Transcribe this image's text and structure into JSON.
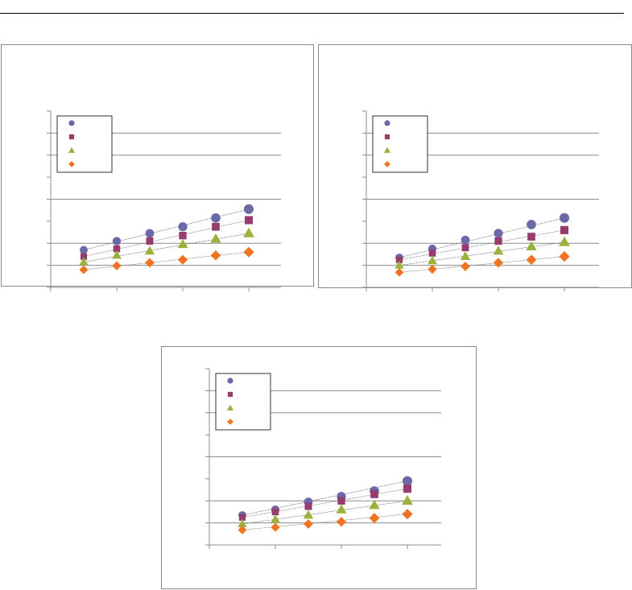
{
  "chart_data": [
    {
      "type": "scatter",
      "title": "",
      "xlabel": "",
      "ylabel": "",
      "xlim": [
        0,
        3.5
      ],
      "ylim": [
        0,
        8
      ],
      "grid": true,
      "legend": "top-left",
      "x": [
        0.5,
        1.0,
        1.5,
        2.0,
        2.5,
        3.0
      ],
      "series": [
        {
          "values": [
            1.7,
            2.1,
            2.45,
            2.75,
            3.15,
            3.55
          ],
          "marker": "circle",
          "color": "#6b6aa8"
        },
        {
          "values": [
            1.4,
            1.75,
            2.1,
            2.35,
            2.75,
            3.05
          ],
          "marker": "square",
          "color": "#963c6e"
        },
        {
          "values": [
            1.15,
            1.45,
            1.65,
            1.95,
            2.2,
            2.45
          ],
          "marker": "triangle",
          "color": "#9bb13c"
        },
        {
          "values": [
            0.8,
            0.98,
            1.12,
            1.25,
            1.45,
            1.6
          ],
          "marker": "diamond",
          "color": "#f07321"
        }
      ]
    },
    {
      "type": "scatter",
      "title": "",
      "xlabel": "",
      "ylabel": "",
      "xlim": [
        0,
        3.5
      ],
      "ylim": [
        0,
        8
      ],
      "grid": true,
      "legend": "top-left",
      "x": [
        0.5,
        1.0,
        1.5,
        2.0,
        2.5,
        3.0
      ],
      "series": [
        {
          "values": [
            1.35,
            1.75,
            2.15,
            2.45,
            2.85,
            3.15
          ],
          "marker": "circle",
          "color": "#6b6aa8"
        },
        {
          "values": [
            1.25,
            1.55,
            1.8,
            2.1,
            2.3,
            2.6
          ],
          "marker": "square",
          "color": "#963c6e"
        },
        {
          "values": [
            1.0,
            1.2,
            1.4,
            1.65,
            1.85,
            2.05
          ],
          "marker": "triangle",
          "color": "#9bb13c"
        },
        {
          "values": [
            0.68,
            0.82,
            0.95,
            1.12,
            1.25,
            1.4
          ],
          "marker": "diamond",
          "color": "#f07321"
        }
      ]
    },
    {
      "type": "scatter",
      "title": "",
      "xlabel": "",
      "ylabel": "",
      "xlim": [
        0,
        3.5
      ],
      "ylim": [
        0,
        8
      ],
      "grid": true,
      "legend": "top-left",
      "x": [
        0.5,
        1.0,
        1.5,
        2.0,
        2.5,
        3.0
      ],
      "series": [
        {
          "values": [
            1.35,
            1.6,
            1.95,
            2.2,
            2.45,
            2.9
          ],
          "marker": "circle",
          "color": "#6b6aa8"
        },
        {
          "values": [
            1.25,
            1.5,
            1.75,
            2.0,
            2.3,
            2.55
          ],
          "marker": "square",
          "color": "#963c6e"
        },
        {
          "values": [
            0.95,
            1.15,
            1.35,
            1.6,
            1.8,
            2.0
          ],
          "marker": "triangle",
          "color": "#9bb13c"
        },
        {
          "values": [
            0.68,
            0.8,
            0.95,
            1.05,
            1.22,
            1.4
          ],
          "marker": "diamond",
          "color": "#f07321"
        }
      ]
    }
  ]
}
